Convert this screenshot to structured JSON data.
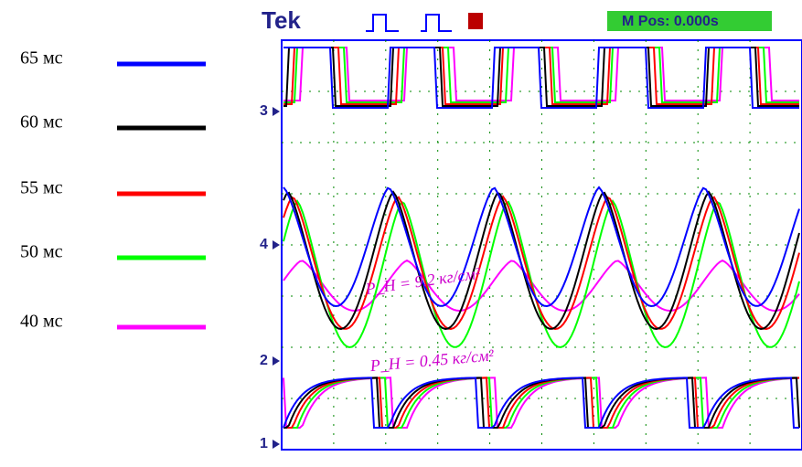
{
  "legend": [
    {
      "label": "65 мс",
      "color": "#0000ff"
    },
    {
      "label": "60 мс",
      "color": "#000000"
    },
    {
      "label": "55 мс",
      "color": "#ff0000"
    },
    {
      "label": "50 мс",
      "color": "#00ff00"
    },
    {
      "label": "40 мс",
      "color": "#ff00ff"
    }
  ],
  "scope": {
    "brand": "Tek",
    "trigger": "M Pos: 0.000s",
    "channels": [
      "3",
      "4",
      "2",
      "1"
    ],
    "notes": [
      "P_H = 9.2 кг/см²",
      "P_H = 0.45 кг/см²"
    ]
  }
}
